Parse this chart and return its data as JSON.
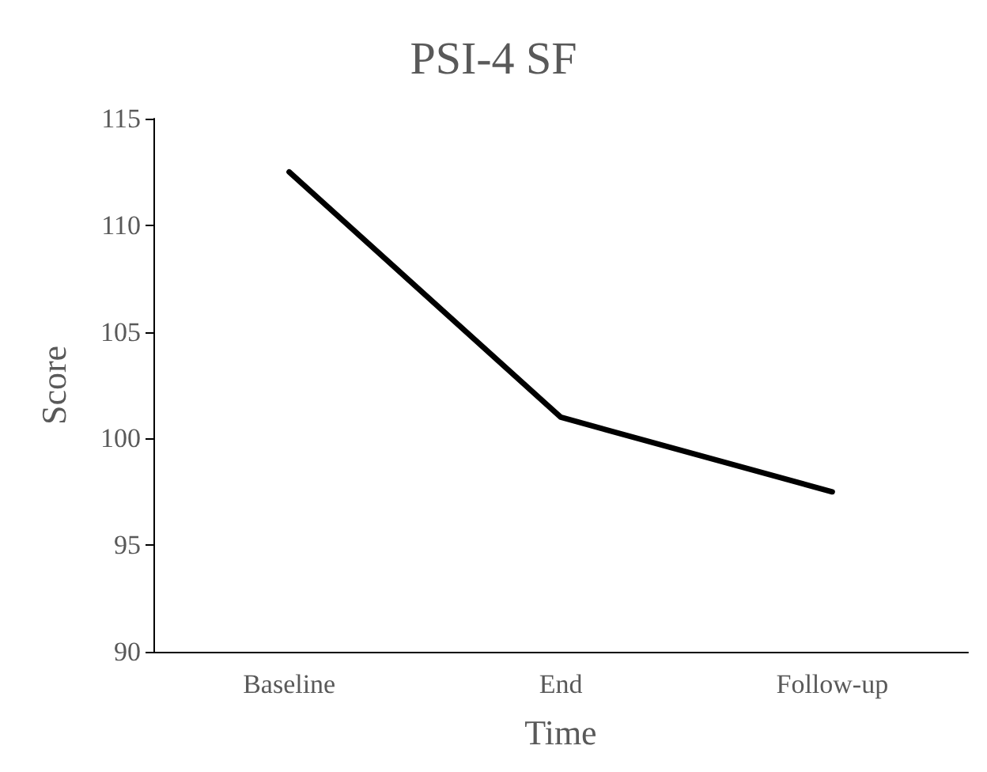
{
  "chart_data": {
    "type": "line",
    "title": "PSI-4 SF",
    "xlabel": "Time",
    "ylabel": "Score",
    "categories": [
      "Baseline",
      "End",
      "Follow-up"
    ],
    "series": [
      {
        "color": "#000000",
        "values": [
          112.5,
          101,
          97.5
        ]
      }
    ],
    "ylim": [
      90,
      115
    ],
    "yticks": [
      90,
      95,
      100,
      105,
      110,
      115
    ],
    "grid": false,
    "marker": "none",
    "line_style": "solid"
  }
}
